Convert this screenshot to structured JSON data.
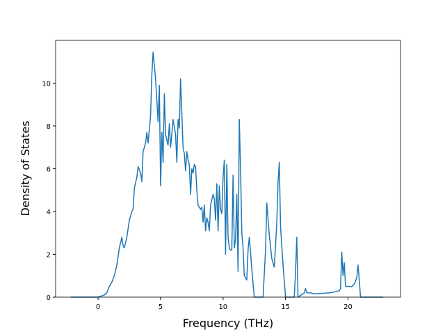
{
  "chart_data": {
    "type": "line",
    "x_label": "Frequency (THz)",
    "y_label": "Density of States",
    "color": "#1f77b4",
    "xlim": [
      -3.4,
      24.2
    ],
    "ylim": [
      0,
      12.0
    ],
    "xticks": [
      0,
      5,
      10,
      15,
      20
    ],
    "yticks": [
      0,
      2,
      4,
      6,
      8,
      10
    ],
    "x": [
      -2.2,
      0,
      0.5,
      0.7,
      0.9,
      1.1,
      1.3,
      1.5,
      1.7,
      1.9,
      2.0,
      2.1,
      2.3,
      2.5,
      2.7,
      2.8,
      2.9,
      3.1,
      3.2,
      3.4,
      3.5,
      3.6,
      3.8,
      3.9,
      4.0,
      4.2,
      4.3,
      4.4,
      4.6,
      4.8,
      4.9,
      5.0,
      5.1,
      5.2,
      5.3,
      5.4,
      5.6,
      5.7,
      5.8,
      6.0,
      6.2,
      6.3,
      6.4,
      6.5,
      6.6,
      6.8,
      6.9,
      7.0,
      7.1,
      7.2,
      7.3,
      7.4,
      7.5,
      7.6,
      7.7,
      7.8,
      7.9,
      8.0,
      8.2,
      8.3,
      8.4,
      8.5,
      8.6,
      8.7,
      8.8,
      8.9,
      9.0,
      9.2,
      9.3,
      9.4,
      9.5,
      9.6,
      9.7,
      9.8,
      9.9,
      10.0,
      10.1,
      10.2,
      10.3,
      10.4,
      10.5,
      10.6,
      10.7,
      10.8,
      10.9,
      11.0,
      11.1,
      11.2,
      11.3,
      11.4,
      11.5,
      11.6,
      11.7,
      11.9,
      12.0,
      12.1,
      12.2,
      12.3,
      12.5,
      13.2,
      13.4,
      13.5,
      13.7,
      13.9,
      14.1,
      14.2,
      14.3,
      14.4,
      14.5,
      14.6,
      14.8,
      15.0,
      15.7,
      15.8,
      15.9,
      16.0,
      16.5,
      16.6,
      16.7,
      17.0,
      17.3,
      18.0,
      18.5,
      19.0,
      19.3,
      19.4,
      19.5,
      19.6,
      19.7,
      19.8,
      20.0,
      20.3,
      20.5,
      20.7,
      20.8,
      20.9,
      21.0,
      22.8
    ],
    "values": [
      0,
      0,
      0.1,
      0.2,
      0.5,
      0.7,
      1.0,
      1.5,
      2.3,
      2.8,
      2.4,
      2.3,
      2.8,
      3.6,
      4.0,
      4.1,
      5.1,
      5.6,
      6.1,
      5.8,
      5.4,
      6.8,
      7.2,
      7.7,
      7.2,
      8.5,
      10.4,
      11.45,
      10.2,
      8.2,
      9.9,
      5.2,
      7.7,
      6.3,
      9.5,
      7.6,
      7.1,
      8.1,
      7.0,
      8.3,
      7.6,
      6.3,
      8.3,
      7.9,
      10.2,
      7.0,
      6.7,
      5.9,
      6.8,
      6.4,
      6.2,
      4.8,
      6.0,
      5.8,
      6.2,
      6.1,
      5.0,
      4.3,
      4.1,
      4.2,
      3.5,
      4.3,
      3.1,
      3.7,
      3.5,
      3.1,
      4.3,
      4.8,
      4.6,
      3.6,
      5.3,
      3.1,
      5.2,
      4.1,
      3.9,
      5.6,
      6.4,
      2.0,
      6.2,
      2.8,
      2.3,
      2.2,
      2.2,
      5.7,
      2.3,
      2.7,
      4.8,
      1.2,
      8.3,
      6.0,
      3.0,
      2.3,
      1.0,
      0.8,
      2.2,
      2.8,
      2.1,
      1.3,
      0,
      0,
      2.2,
      4.4,
      2.9,
      1.8,
      1.4,
      2.4,
      3.5,
      5.4,
      6.3,
      3.3,
      1.5,
      0,
      0,
      1.2,
      2.8,
      0,
      0.2,
      0.4,
      0.2,
      0.2,
      0.15,
      0.18,
      0.2,
      0.25,
      0.3,
      0.4,
      2.1,
      1.0,
      1.6,
      0.5,
      0.5,
      0.5,
      0.6,
      0.9,
      1.5,
      0.8,
      0,
      0
    ]
  }
}
